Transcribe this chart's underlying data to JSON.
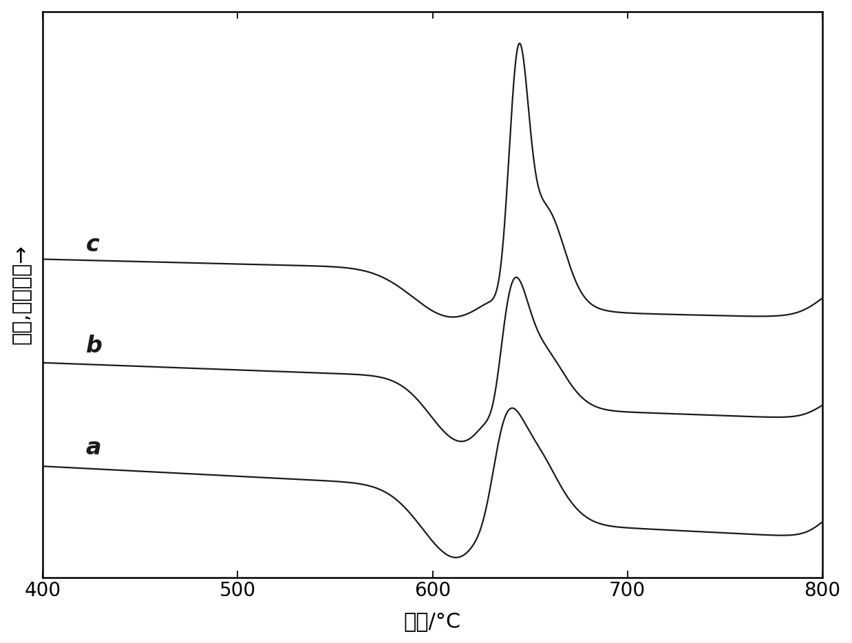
{
  "xlim": [
    400,
    800
  ],
  "xlabel": "温度／°C",
  "ylabel": "热流，放热方向→",
  "curve_labels": [
    "a",
    "b",
    "c"
  ],
  "bg_color": "#ffffff",
  "line_color": "#1a1a1a",
  "axis_color": "#000000",
  "tick_color": "#000000",
  "label_fontsize": 24,
  "axis_fontsize": 22,
  "tick_fontsize": 20
}
